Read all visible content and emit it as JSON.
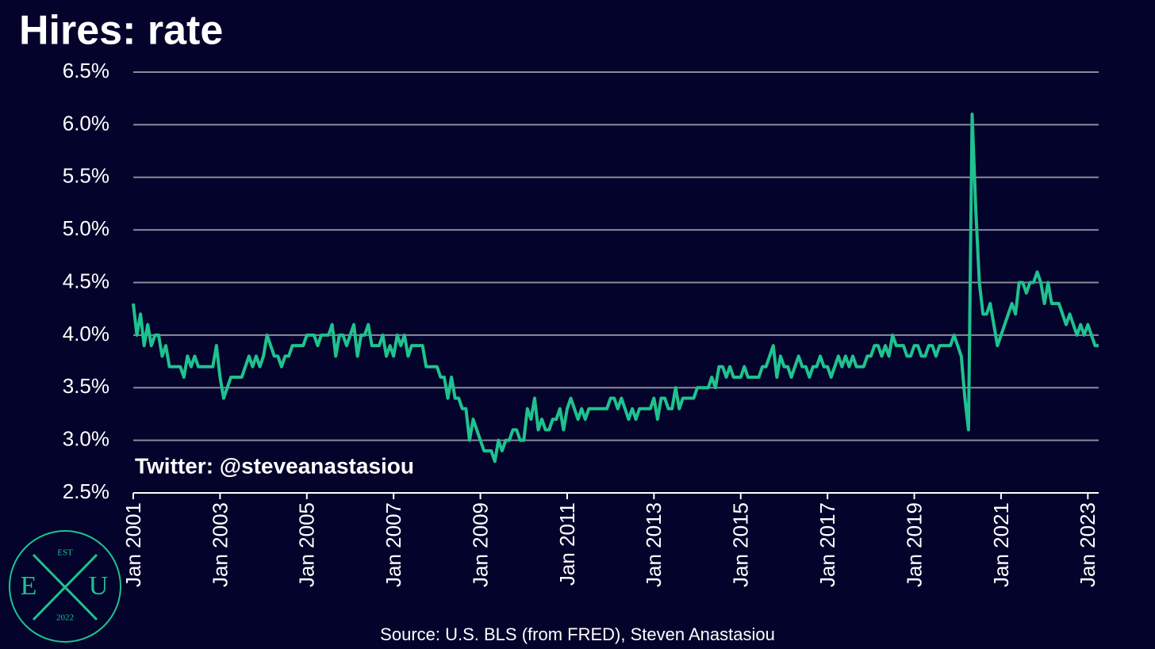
{
  "chart_data": {
    "type": "line",
    "title": "Hires: rate",
    "annotation": "Twitter: @steveanastasiou",
    "source": "Source: U.S. BLS (from FRED), Steven Anastasiou",
    "logo": {
      "top": "EST",
      "left": "E",
      "right": "U",
      "bottom": "2022"
    },
    "grid": true,
    "ylim": [
      2.5,
      6.5
    ],
    "yticks": [
      {
        "value": 2.5,
        "label": "2.5%"
      },
      {
        "value": 3.0,
        "label": "3.0%"
      },
      {
        "value": 3.5,
        "label": "3.5%"
      },
      {
        "value": 4.0,
        "label": "4.0%"
      },
      {
        "value": 4.5,
        "label": "4.5%"
      },
      {
        "value": 5.0,
        "label": "5.0%"
      },
      {
        "value": 5.5,
        "label": "5.5%"
      },
      {
        "value": 6.0,
        "label": "6.0%"
      },
      {
        "value": 6.5,
        "label": "6.5%"
      }
    ],
    "xticks": [
      {
        "value": "2001-01",
        "label": "Jan 2001"
      },
      {
        "value": "2003-01",
        "label": "Jan 2003"
      },
      {
        "value": "2005-01",
        "label": "Jan 2005"
      },
      {
        "value": "2007-01",
        "label": "Jan 2007"
      },
      {
        "value": "2009-01",
        "label": "Jan 2009"
      },
      {
        "value": "2011-01",
        "label": "Jan 2011"
      },
      {
        "value": "2013-01",
        "label": "Jan 2013"
      },
      {
        "value": "2015-01",
        "label": "Jan 2015"
      },
      {
        "value": "2017-01",
        "label": "Jan 2017"
      },
      {
        "value": "2019-01",
        "label": "Jan 2019"
      },
      {
        "value": "2021-01",
        "label": "Jan 2021"
      },
      {
        "value": "2023-01",
        "label": "Jan 2023"
      }
    ],
    "x": [
      "2001-01",
      "2001-02",
      "2001-03",
      "2001-04",
      "2001-05",
      "2001-06",
      "2001-07",
      "2001-08",
      "2001-09",
      "2001-10",
      "2001-11",
      "2001-12",
      "2002-01",
      "2002-02",
      "2002-03",
      "2002-04",
      "2002-05",
      "2002-06",
      "2002-07",
      "2002-08",
      "2002-09",
      "2002-10",
      "2002-11",
      "2002-12",
      "2003-01",
      "2003-02",
      "2003-03",
      "2003-04",
      "2003-05",
      "2003-06",
      "2003-07",
      "2003-08",
      "2003-09",
      "2003-10",
      "2003-11",
      "2003-12",
      "2004-01",
      "2004-02",
      "2004-03",
      "2004-04",
      "2004-05",
      "2004-06",
      "2004-07",
      "2004-08",
      "2004-09",
      "2004-10",
      "2004-11",
      "2004-12",
      "2005-01",
      "2005-02",
      "2005-03",
      "2005-04",
      "2005-05",
      "2005-06",
      "2005-07",
      "2005-08",
      "2005-09",
      "2005-10",
      "2005-11",
      "2005-12",
      "2006-01",
      "2006-02",
      "2006-03",
      "2006-04",
      "2006-05",
      "2006-06",
      "2006-07",
      "2006-08",
      "2006-09",
      "2006-10",
      "2006-11",
      "2006-12",
      "2007-01",
      "2007-02",
      "2007-03",
      "2007-04",
      "2007-05",
      "2007-06",
      "2007-07",
      "2007-08",
      "2007-09",
      "2007-10",
      "2007-11",
      "2007-12",
      "2008-01",
      "2008-02",
      "2008-03",
      "2008-04",
      "2008-05",
      "2008-06",
      "2008-07",
      "2008-08",
      "2008-09",
      "2008-10",
      "2008-11",
      "2008-12",
      "2009-01",
      "2009-02",
      "2009-03",
      "2009-04",
      "2009-05",
      "2009-06",
      "2009-07",
      "2009-08",
      "2009-09",
      "2009-10",
      "2009-11",
      "2009-12",
      "2010-01",
      "2010-02",
      "2010-03",
      "2010-04",
      "2010-05",
      "2010-06",
      "2010-07",
      "2010-08",
      "2010-09",
      "2010-10",
      "2010-11",
      "2010-12",
      "2011-01",
      "2011-02",
      "2011-03",
      "2011-04",
      "2011-05",
      "2011-06",
      "2011-07",
      "2011-08",
      "2011-09",
      "2011-10",
      "2011-11",
      "2011-12",
      "2012-01",
      "2012-02",
      "2012-03",
      "2012-04",
      "2012-05",
      "2012-06",
      "2012-07",
      "2012-08",
      "2012-09",
      "2012-10",
      "2012-11",
      "2012-12",
      "2013-01",
      "2013-02",
      "2013-03",
      "2013-04",
      "2013-05",
      "2013-06",
      "2013-07",
      "2013-08",
      "2013-09",
      "2013-10",
      "2013-11",
      "2013-12",
      "2014-01",
      "2014-02",
      "2014-03",
      "2014-04",
      "2014-05",
      "2014-06",
      "2014-07",
      "2014-08",
      "2014-09",
      "2014-10",
      "2014-11",
      "2014-12",
      "2015-01",
      "2015-02",
      "2015-03",
      "2015-04",
      "2015-05",
      "2015-06",
      "2015-07",
      "2015-08",
      "2015-09",
      "2015-10",
      "2015-11",
      "2015-12",
      "2016-01",
      "2016-02",
      "2016-03",
      "2016-04",
      "2016-05",
      "2016-06",
      "2016-07",
      "2016-08",
      "2016-09",
      "2016-10",
      "2016-11",
      "2016-12",
      "2017-01",
      "2017-02",
      "2017-03",
      "2017-04",
      "2017-05",
      "2017-06",
      "2017-07",
      "2017-08",
      "2017-09",
      "2017-10",
      "2017-11",
      "2017-12",
      "2018-01",
      "2018-02",
      "2018-03",
      "2018-04",
      "2018-05",
      "2018-06",
      "2018-07",
      "2018-08",
      "2018-09",
      "2018-10",
      "2018-11",
      "2018-12",
      "2019-01",
      "2019-02",
      "2019-03",
      "2019-04",
      "2019-05",
      "2019-06",
      "2019-07",
      "2019-08",
      "2019-09",
      "2019-10",
      "2019-11",
      "2019-12",
      "2020-01",
      "2020-02",
      "2020-03",
      "2020-04",
      "2020-05",
      "2020-06",
      "2020-07",
      "2020-08",
      "2020-09",
      "2020-10",
      "2020-11",
      "2020-12",
      "2021-01",
      "2021-02",
      "2021-03",
      "2021-04",
      "2021-05",
      "2021-06",
      "2021-07",
      "2021-08",
      "2021-09",
      "2021-10",
      "2021-11",
      "2021-12",
      "2022-01",
      "2022-02",
      "2022-03",
      "2022-04",
      "2022-05",
      "2022-06",
      "2022-07",
      "2022-08",
      "2022-09",
      "2022-10",
      "2022-11",
      "2022-12",
      "2023-01",
      "2023-02",
      "2023-03",
      "2023-04"
    ],
    "series": [
      {
        "name": "Hires: rate",
        "color": "#1ec28f",
        "values": [
          4.3,
          4.0,
          4.2,
          3.9,
          4.1,
          3.9,
          4.0,
          4.0,
          3.8,
          3.9,
          3.7,
          3.7,
          3.7,
          3.7,
          3.6,
          3.8,
          3.7,
          3.8,
          3.7,
          3.7,
          3.7,
          3.7,
          3.7,
          3.9,
          3.6,
          3.4,
          3.5,
          3.6,
          3.6,
          3.6,
          3.6,
          3.7,
          3.8,
          3.7,
          3.8,
          3.7,
          3.8,
          4.0,
          3.9,
          3.8,
          3.8,
          3.7,
          3.8,
          3.8,
          3.9,
          3.9,
          3.9,
          3.9,
          4.0,
          4.0,
          4.0,
          3.9,
          4.0,
          4.0,
          4.0,
          4.1,
          3.8,
          4.0,
          4.0,
          3.9,
          4.0,
          4.1,
          3.8,
          4.0,
          4.0,
          4.1,
          3.9,
          3.9,
          3.9,
          4.0,
          3.8,
          3.9,
          3.8,
          4.0,
          3.9,
          4.0,
          3.8,
          3.9,
          3.9,
          3.9,
          3.9,
          3.7,
          3.7,
          3.7,
          3.7,
          3.6,
          3.6,
          3.4,
          3.6,
          3.4,
          3.4,
          3.3,
          3.3,
          3.0,
          3.2,
          3.1,
          3.0,
          2.9,
          2.9,
          2.9,
          2.8,
          3.0,
          2.9,
          3.0,
          3.0,
          3.1,
          3.1,
          3.0,
          3.0,
          3.3,
          3.2,
          3.4,
          3.1,
          3.2,
          3.1,
          3.1,
          3.2,
          3.2,
          3.3,
          3.1,
          3.3,
          3.4,
          3.3,
          3.2,
          3.3,
          3.2,
          3.3,
          3.3,
          3.3,
          3.3,
          3.3,
          3.3,
          3.4,
          3.4,
          3.3,
          3.4,
          3.3,
          3.2,
          3.3,
          3.2,
          3.3,
          3.3,
          3.3,
          3.3,
          3.4,
          3.2,
          3.4,
          3.4,
          3.3,
          3.3,
          3.5,
          3.3,
          3.4,
          3.4,
          3.4,
          3.4,
          3.5,
          3.5,
          3.5,
          3.5,
          3.6,
          3.5,
          3.7,
          3.7,
          3.6,
          3.7,
          3.6,
          3.6,
          3.6,
          3.7,
          3.6,
          3.6,
          3.6,
          3.6,
          3.7,
          3.7,
          3.8,
          3.9,
          3.6,
          3.8,
          3.7,
          3.7,
          3.6,
          3.7,
          3.8,
          3.7,
          3.7,
          3.6,
          3.7,
          3.7,
          3.8,
          3.7,
          3.7,
          3.6,
          3.7,
          3.8,
          3.7,
          3.8,
          3.7,
          3.8,
          3.7,
          3.7,
          3.7,
          3.8,
          3.8,
          3.9,
          3.9,
          3.8,
          3.9,
          3.8,
          4.0,
          3.9,
          3.9,
          3.9,
          3.8,
          3.8,
          3.9,
          3.9,
          3.8,
          3.8,
          3.9,
          3.9,
          3.8,
          3.9,
          3.9,
          3.9,
          3.9,
          4.0,
          3.9,
          3.8,
          3.4,
          3.1,
          6.1,
          5.2,
          4.5,
          4.2,
          4.2,
          4.3,
          4.1,
          3.9,
          4.0,
          4.1,
          4.2,
          4.3,
          4.2,
          4.5,
          4.5,
          4.4,
          4.5,
          4.5,
          4.6,
          4.5,
          4.3,
          4.5,
          4.3,
          4.3,
          4.3,
          4.2,
          4.1,
          4.2,
          4.1,
          4.0,
          4.1,
          4.0,
          4.1,
          4.0,
          3.9,
          3.9
        ]
      }
    ]
  }
}
